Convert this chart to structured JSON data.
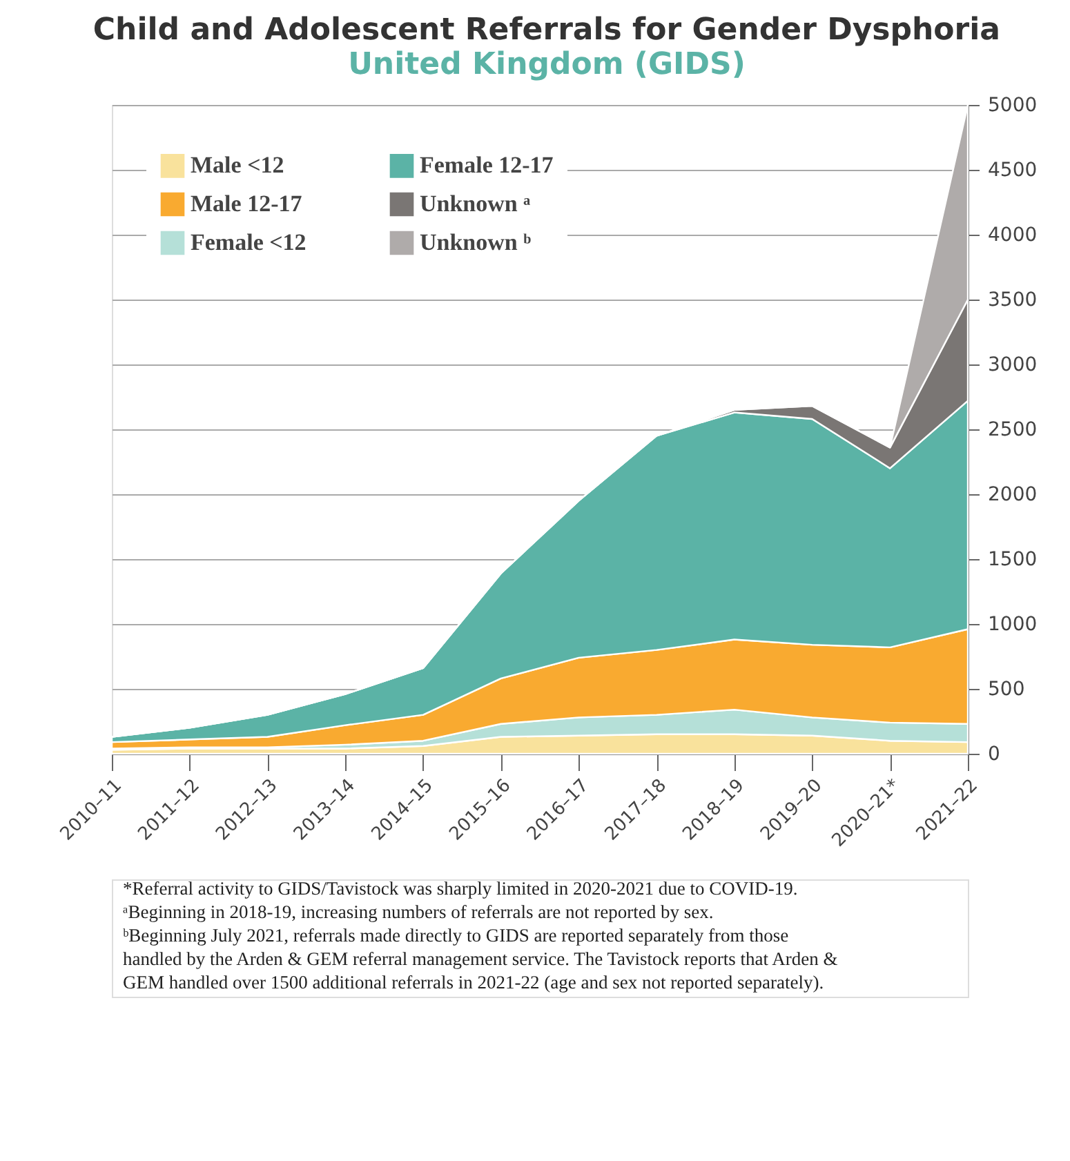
{
  "chart_data": {
    "type": "area",
    "stacked": true,
    "title": "Child and Adolescent Referrals for Gender Dysphoria",
    "subtitle": "United Kingdom (GIDS)",
    "categories": [
      "2010–11",
      "2011–12",
      "2012–13",
      "2013–14",
      "2014–15",
      "2015–16",
      "2016–17",
      "2017–18",
      "2018–19",
      "2019–20",
      "2020–21*",
      "2021–22"
    ],
    "series": [
      {
        "name": "Male <12",
        "color": "#f9e29c",
        "values": [
          30,
          40,
          40,
          40,
          60,
          130,
          140,
          150,
          150,
          140,
          100,
          90
        ]
      },
      {
        "name": "Female <12",
        "color": "#b5e0d8",
        "values": [
          10,
          10,
          10,
          30,
          40,
          100,
          140,
          150,
          190,
          140,
          140,
          140
        ]
      },
      {
        "name": "Male 12-17",
        "color": "#f9aa30",
        "values": [
          50,
          60,
          80,
          150,
          200,
          350,
          460,
          500,
          540,
          560,
          580,
          730
        ]
      },
      {
        "name": "Female 12-17",
        "color": "#5bb3a6",
        "values": [
          40,
          90,
          170,
          240,
          360,
          810,
          1210,
          1650,
          1750,
          1740,
          1380,
          1760
        ]
      },
      {
        "name": "Unknown ᵃ",
        "color": "#7a7674",
        "values": [
          0,
          0,
          0,
          0,
          0,
          0,
          0,
          0,
          20,
          100,
          160,
          780
        ]
      },
      {
        "name": "Unknown ᵇ",
        "color": "#afabaa",
        "values": [
          0,
          0,
          0,
          0,
          0,
          0,
          0,
          0,
          0,
          0,
          0,
          1500
        ]
      }
    ],
    "ylim": [
      0,
      5000
    ],
    "yticks": [
      0,
      500,
      1000,
      1500,
      2000,
      2500,
      3000,
      3500,
      4000,
      4500,
      5000
    ],
    "grid": "y",
    "legend": "top left",
    "annotations": [
      "*Referral activity to GIDS/Tavistock was sharply limited in 2020-2021 due to COVID-19.",
      "ᵃBeginning in 2018-19, increasing numbers of referrals are not reported by sex.",
      "ᵇBeginning July 2021, referrals made directly to GIDS are reported separately from those handled by the Arden & GEM referral management service. The Tavistock reports that Arden & GEM handled over 1500 additional referrals in 2021-22 (age and sex not reported separately)."
    ]
  }
}
